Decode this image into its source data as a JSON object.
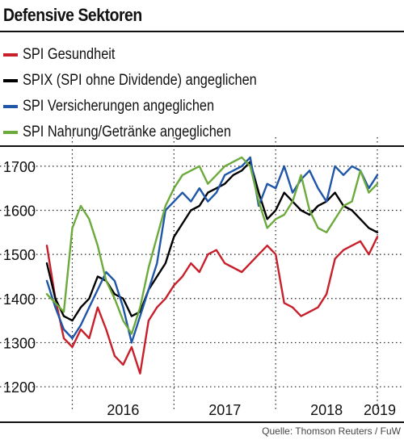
{
  "title": "Defensive Sektoren",
  "source": "Quelle: Thomson Reuters / FuW",
  "chart_data": {
    "type": "line",
    "title": "Defensive Sektoren",
    "xlabel": "",
    "ylabel": "",
    "x_ticks": [
      "2016",
      "2017",
      "2018",
      "2019"
    ],
    "y_ticks": [
      1200,
      1300,
      1400,
      1500,
      1600,
      1700
    ],
    "ylim": [
      1180,
      1740
    ],
    "grid": true,
    "legend_position": "top",
    "x": [
      "2015-10",
      "2015-11",
      "2015-12",
      "2016-01",
      "2016-02",
      "2016-03",
      "2016-04",
      "2016-05",
      "2016-06",
      "2016-07",
      "2016-08",
      "2016-09",
      "2016-10",
      "2016-11",
      "2016-12",
      "2017-01",
      "2017-02",
      "2017-03",
      "2017-04",
      "2017-05",
      "2017-06",
      "2017-07",
      "2017-08",
      "2017-09",
      "2017-10",
      "2017-11",
      "2017-12",
      "2018-01",
      "2018-02",
      "2018-03",
      "2018-04",
      "2018-05",
      "2018-06",
      "2018-07",
      "2018-08",
      "2018-09",
      "2018-10",
      "2018-11",
      "2018-12",
      "2019-01"
    ],
    "series": [
      {
        "name": "SPI Gesundheit",
        "color": "#c8202a",
        "values": [
          1520,
          1400,
          1310,
          1290,
          1330,
          1310,
          1380,
          1330,
          1270,
          1250,
          1290,
          1230,
          1350,
          1380,
          1400,
          1430,
          1450,
          1480,
          1460,
          1500,
          1510,
          1480,
          1470,
          1460,
          1480,
          1500,
          1520,
          1500,
          1390,
          1380,
          1360,
          1370,
          1380,
          1410,
          1490,
          1510,
          1520,
          1530,
          1500,
          1540
        ]
      },
      {
        "name": "SPIX (SPI ohne Dividende) angeglichen",
        "color": "#000000",
        "values": [
          1480,
          1400,
          1360,
          1350,
          1380,
          1400,
          1450,
          1440,
          1410,
          1400,
          1360,
          1370,
          1420,
          1450,
          1480,
          1540,
          1570,
          1600,
          1610,
          1640,
          1650,
          1660,
          1680,
          1690,
          1710,
          1640,
          1580,
          1600,
          1640,
          1620,
          1600,
          1590,
          1610,
          1620,
          1640,
          1610,
          1600,
          1580,
          1560,
          1550
        ]
      },
      {
        "name": "SPI Versicherungen angeglichen",
        "color": "#1f56a8",
        "values": [
          1440,
          1380,
          1330,
          1310,
          1340,
          1380,
          1420,
          1460,
          1440,
          1380,
          1300,
          1360,
          1420,
          1480,
          1600,
          1620,
          1640,
          1620,
          1650,
          1620,
          1640,
          1680,
          1690,
          1700,
          1720,
          1610,
          1660,
          1650,
          1700,
          1640,
          1670,
          1690,
          1650,
          1620,
          1700,
          1680,
          1700,
          1690,
          1650,
          1680
        ]
      },
      {
        "name": "SPI Nahrung/Getränke angeglichen",
        "color": "#6caa3c",
        "values": [
          1410,
          1390,
          1370,
          1560,
          1610,
          1580,
          1520,
          1440,
          1400,
          1350,
          1320,
          1380,
          1470,
          1540,
          1610,
          1650,
          1680,
          1690,
          1700,
          1660,
          1680,
          1700,
          1710,
          1720,
          1700,
          1620,
          1560,
          1580,
          1590,
          1620,
          1680,
          1600,
          1560,
          1550,
          1580,
          1610,
          1620,
          1690,
          1640,
          1660
        ]
      }
    ]
  }
}
